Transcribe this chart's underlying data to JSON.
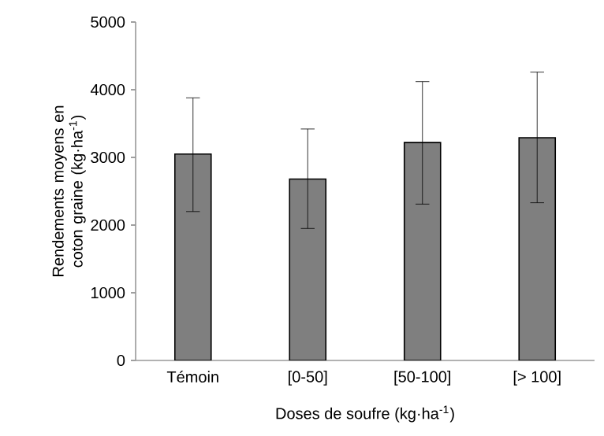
{
  "chart_data": {
    "type": "bar",
    "xlabel": "Doses de soufre (kg·ha$^{-1}$)",
    "ylabel": "Rendements moyens en coton graine (kg·ha$^{-1}$)",
    "categories": [
      "Témoin",
      "[0-50]",
      "[50-100]",
      "[> 100]"
    ],
    "values": [
      3050,
      2680,
      3220,
      3290
    ],
    "errors": [
      [
        2200,
        3880
      ],
      [
        1950,
        3420
      ],
      [
        2310,
        4120
      ],
      [
        2330,
        4260
      ]
    ],
    "color": "#7f7f7f",
    "ylim": [
      0,
      5000
    ],
    "yticks": [
      0,
      1000,
      2000,
      3000,
      4000,
      5000
    ],
    "grid": false
  }
}
